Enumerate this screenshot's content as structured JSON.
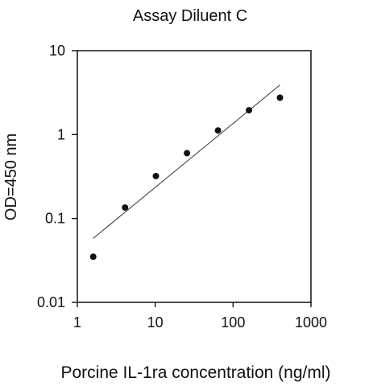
{
  "chart_data": {
    "type": "scatter",
    "title": "Assay Diluent C",
    "xlabel": "Porcine IL-1ra concentration (ng/ml)",
    "ylabel": "OD=450 nm",
    "x_scale": "log",
    "y_scale": "log",
    "xlim": [
      1,
      1000
    ],
    "ylim": [
      0.01,
      10
    ],
    "x_ticks": [
      {
        "value": 1,
        "label": "1"
      },
      {
        "value": 10,
        "label": "10"
      },
      {
        "value": 100,
        "label": "100"
      },
      {
        "value": 1000,
        "label": "1000"
      }
    ],
    "y_ticks": [
      {
        "value": 0.01,
        "label": "0.01"
      },
      {
        "value": 0.1,
        "label": "0.1"
      },
      {
        "value": 1,
        "label": "1"
      },
      {
        "value": 10,
        "label": "10"
      }
    ],
    "grid": false,
    "legend": "none",
    "series": [
      {
        "kind": "points",
        "color": "#111111",
        "x": [
          1.6,
          4.1,
          10.2,
          25.6,
          64,
          160,
          400
        ],
        "y": [
          0.035,
          0.135,
          0.32,
          0.6,
          1.12,
          1.95,
          2.75
        ]
      },
      {
        "kind": "trendline",
        "color": "#333333",
        "x": [
          1.6,
          400
        ],
        "y": [
          0.058,
          3.9
        ]
      }
    ]
  }
}
